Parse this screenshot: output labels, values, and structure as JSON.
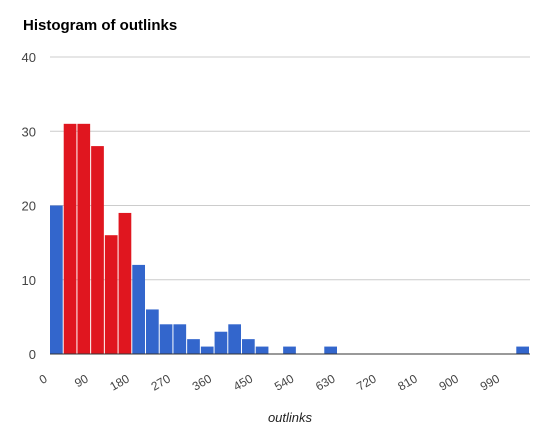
{
  "chart_data": {
    "type": "bar",
    "title": "Histogram of outlinks",
    "xlabel": "outlinks",
    "ylabel": "",
    "ylim": [
      0,
      40
    ],
    "y_ticks": [
      "0",
      "10",
      "20",
      "30",
      "40"
    ],
    "x_ticks": [
      "0",
      "90",
      "180",
      "270",
      "360",
      "450",
      "540",
      "630",
      "720",
      "810",
      "900",
      "990"
    ],
    "bin_width": 30,
    "x_range": [
      0,
      1050
    ],
    "bins": [
      {
        "start": 0,
        "value": 20,
        "color": "#3366cc"
      },
      {
        "start": 30,
        "value": 31,
        "color": "#e0161f"
      },
      {
        "start": 60,
        "value": 31,
        "color": "#e0161f"
      },
      {
        "start": 90,
        "value": 28,
        "color": "#e0161f"
      },
      {
        "start": 120,
        "value": 16,
        "color": "#e0161f"
      },
      {
        "start": 150,
        "value": 19,
        "color": "#e0161f"
      },
      {
        "start": 180,
        "value": 12,
        "color": "#3366cc"
      },
      {
        "start": 210,
        "value": 6,
        "color": "#3366cc"
      },
      {
        "start": 240,
        "value": 4,
        "color": "#3366cc"
      },
      {
        "start": 270,
        "value": 4,
        "color": "#3366cc"
      },
      {
        "start": 300,
        "value": 2,
        "color": "#3366cc"
      },
      {
        "start": 330,
        "value": 1,
        "color": "#3366cc"
      },
      {
        "start": 360,
        "value": 3,
        "color": "#3366cc"
      },
      {
        "start": 390,
        "value": 4,
        "color": "#3366cc"
      },
      {
        "start": 420,
        "value": 2,
        "color": "#3366cc"
      },
      {
        "start": 450,
        "value": 1,
        "color": "#3366cc"
      },
      {
        "start": 510,
        "value": 1,
        "color": "#3366cc"
      },
      {
        "start": 600,
        "value": 1,
        "color": "#3366cc"
      },
      {
        "start": 1020,
        "value": 1,
        "color": "#3366cc"
      }
    ],
    "grid": true
  }
}
